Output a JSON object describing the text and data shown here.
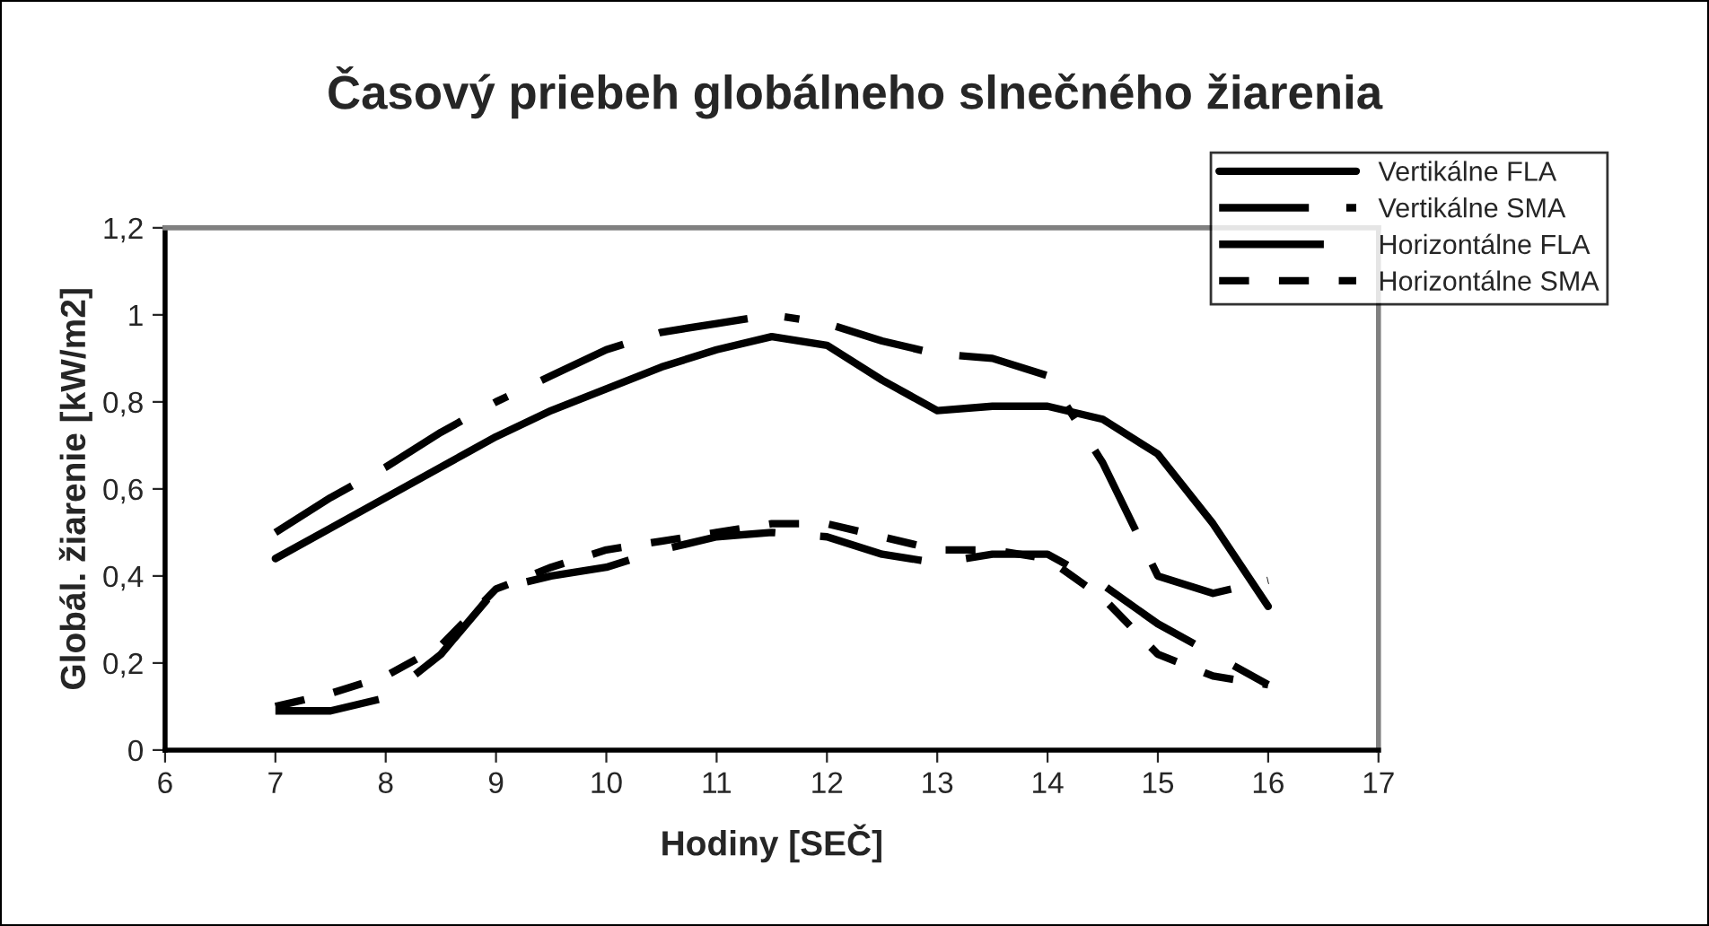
{
  "chart_data": {
    "type": "line",
    "title": "Časový priebeh globálneho slnečného žiarenia",
    "xlabel": "Hodiny [SEČ]",
    "ylabel": "Globál. žiarenie [kW/m2]",
    "x": [
      7,
      7.5,
      8,
      8.5,
      9,
      9.5,
      10,
      10.5,
      11,
      11.5,
      12,
      12.5,
      13,
      13.5,
      14,
      14.5,
      15,
      15.5,
      16
    ],
    "series": [
      {
        "name": "Vertikálne FLA",
        "color": "#000000",
        "line_style": "solid",
        "values": [
          0.44,
          0.51,
          0.58,
          0.65,
          0.72,
          0.78,
          0.83,
          0.88,
          0.92,
          0.95,
          0.93,
          0.85,
          0.78,
          0.79,
          0.79,
          0.76,
          0.68,
          0.52,
          0.33
        ]
      },
      {
        "name": "Vertikálne SMA",
        "color": "#000000",
        "line_style": "dashed",
        "values": [
          0.5,
          0.58,
          0.65,
          0.73,
          0.8,
          0.86,
          0.92,
          0.96,
          0.98,
          1.0,
          0.98,
          0.94,
          0.91,
          0.9,
          0.86,
          0.66,
          0.4,
          0.36,
          0.39
        ]
      },
      {
        "name": "Horizontálne FLA",
        "color": "#000000",
        "line_style": "dashed",
        "values": [
          0.09,
          0.09,
          0.12,
          0.22,
          0.37,
          0.4,
          0.42,
          0.46,
          0.49,
          0.5,
          0.49,
          0.45,
          0.43,
          0.45,
          0.45,
          0.38,
          0.29,
          0.22,
          0.15
        ]
      },
      {
        "name": "Horizontálne SMA",
        "color": "#000000",
        "line_style": "dotted",
        "values": [
          0.1,
          0.13,
          0.17,
          0.24,
          0.37,
          0.42,
          0.46,
          0.48,
          0.5,
          0.52,
          0.52,
          0.49,
          0.46,
          0.46,
          0.44,
          0.35,
          0.22,
          0.17,
          0.15
        ]
      }
    ],
    "xlim": [
      6,
      17
    ],
    "xticks": [
      6,
      7,
      8,
      9,
      10,
      11,
      12,
      13,
      14,
      15,
      16,
      17
    ],
    "ylim": [
      0,
      1.2
    ],
    "yticks": [
      {
        "value": 0,
        "label": "0"
      },
      {
        "value": 0.2,
        "label": "0,2"
      },
      {
        "value": 0.4,
        "label": "0,4"
      },
      {
        "value": 0.6,
        "label": "0,6"
      },
      {
        "value": 0.8,
        "label": "0,8"
      },
      {
        "value": 1,
        "label": "1"
      },
      {
        "value": 1.2,
        "label": "1,2"
      }
    ],
    "grid": false,
    "legend": "top right",
    "marker": "none"
  }
}
